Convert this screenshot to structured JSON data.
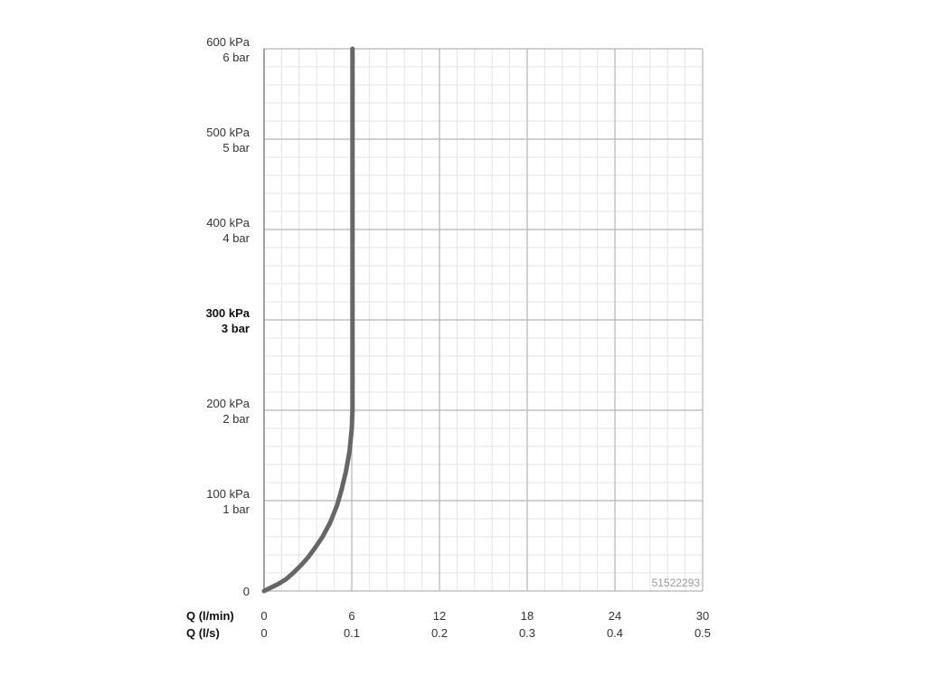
{
  "chart_data": {
    "type": "line",
    "title": "",
    "xlabel_primary": "Q (l/min)",
    "xlabel_secondary": "Q (l/s)",
    "xlim": [
      0,
      30
    ],
    "ylim": [
      0,
      600
    ],
    "x_ticks_primary": [
      "0",
      "6",
      "12",
      "18",
      "24",
      "30"
    ],
    "x_ticks_secondary": [
      "0",
      "0.1",
      "0.2",
      "0.3",
      "0.4",
      "0.5"
    ],
    "x_tick_values": [
      0,
      6,
      12,
      18,
      24,
      30
    ],
    "y_ticks": [
      {
        "value": 0,
        "kpa": "0",
        "bar": "",
        "bold": false
      },
      {
        "value": 100,
        "kpa": "100 kPa",
        "bar": "1 bar",
        "bold": false
      },
      {
        "value": 200,
        "kpa": "200 kPa",
        "bar": "2 bar",
        "bold": false
      },
      {
        "value": 300,
        "kpa": "300 kPa",
        "bar": "3 bar",
        "bold": true
      },
      {
        "value": 400,
        "kpa": "400 kPa",
        "bar": "4 bar",
        "bold": false
      },
      {
        "value": 500,
        "kpa": "500 kPa",
        "bar": "5 bar",
        "bold": false
      },
      {
        "value": 600,
        "kpa": "600 kPa",
        "bar": "6 bar",
        "bold": false
      }
    ],
    "grid": true,
    "series": [
      {
        "name": "",
        "color": "#666666",
        "points": [
          [
            0,
            0
          ],
          [
            0.5,
            4
          ],
          [
            1,
            8
          ],
          [
            1.5,
            13
          ],
          [
            2,
            20
          ],
          [
            2.5,
            28
          ],
          [
            3,
            37
          ],
          [
            3.5,
            48
          ],
          [
            4,
            60
          ],
          [
            4.5,
            75
          ],
          [
            5,
            95
          ],
          [
            5.3,
            112
          ],
          [
            5.6,
            132
          ],
          [
            5.85,
            155
          ],
          [
            6,
            180
          ],
          [
            6.05,
            200
          ],
          [
            6.05,
            600
          ]
        ]
      }
    ],
    "annotation": "51522293"
  }
}
